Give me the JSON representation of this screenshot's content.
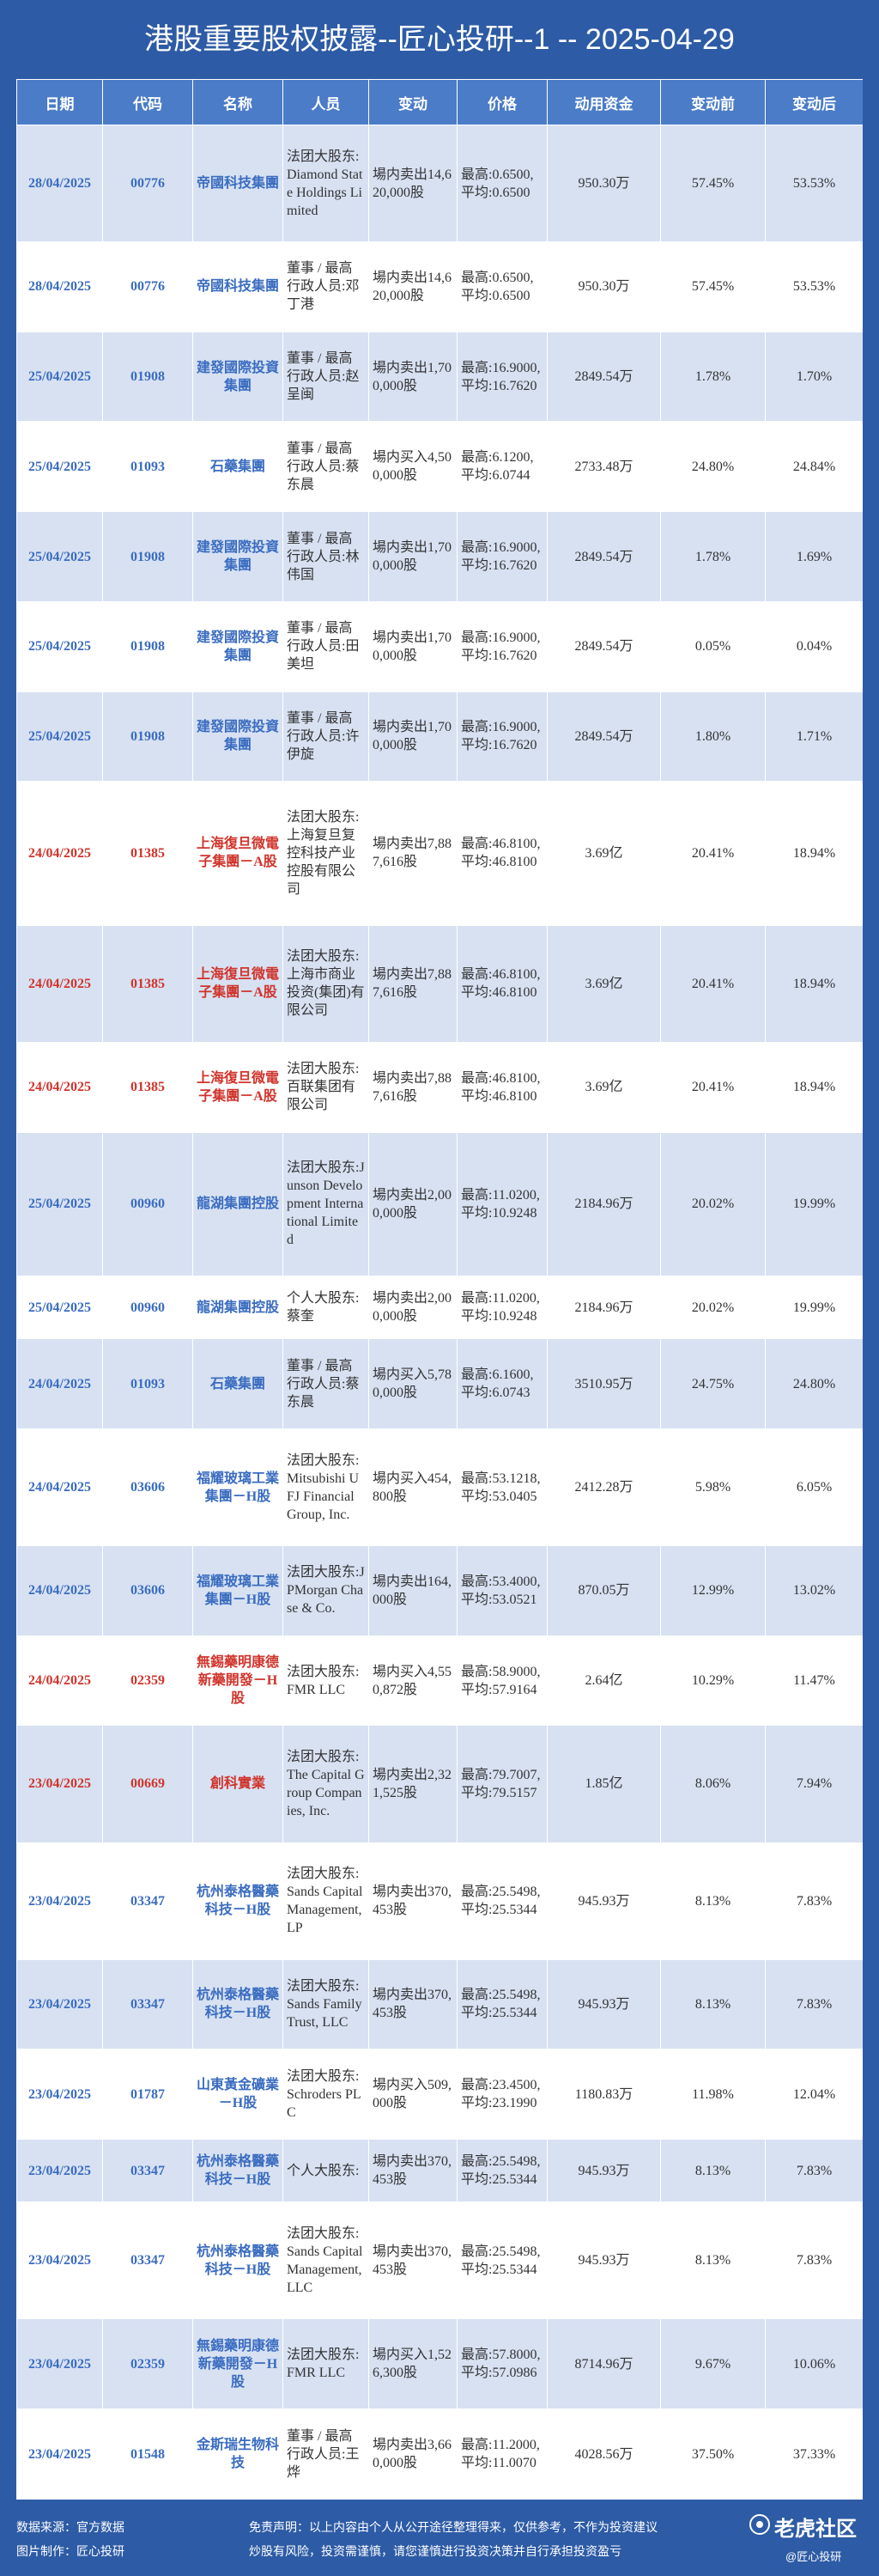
{
  "header": {
    "title": "港股重要股权披露--匠心投研--1 -- 2025-04-29"
  },
  "table": {
    "headers": [
      "日期",
      "代码",
      "名称",
      "人员",
      "变动",
      "价格",
      "动用资金",
      "变动前",
      "变动后"
    ],
    "rows": [
      {
        "color": "#3a6cc0",
        "cells": [
          "28/04/2025",
          "00776",
          "帝國科技集團",
          "法团大股东:Diamond State Holdings Limited",
          "場内卖出14,620,000股",
          "最高:0.6500,平均:0.6500",
          "950.30万",
          "57.45%",
          "53.53%"
        ]
      },
      {
        "color": "#3a6cc0",
        "cells": [
          "28/04/2025",
          "00776",
          "帝國科技集團",
          "董事 / 最高行政人员:邓丁港",
          "場内卖出14,620,000股",
          "最高:0.6500,平均:0.6500",
          "950.30万",
          "57.45%",
          "53.53%"
        ]
      },
      {
        "color": "#3a6cc0",
        "cells": [
          "25/04/2025",
          "01908",
          "建發國際投資集團",
          "董事 / 最高行政人员:赵呈闽",
          "場内卖出1,700,000股",
          "最高:16.9000,平均:16.7620",
          "2849.54万",
          "1.78%",
          "1.70%"
        ]
      },
      {
        "color": "#3a6cc0",
        "cells": [
          "25/04/2025",
          "01093",
          "石藥集團",
          "董事 / 最高行政人员:蔡东晨",
          "場内买入4,500,000股",
          "最高:6.1200,平均:6.0744",
          "2733.48万",
          "24.80%",
          "24.84%"
        ]
      },
      {
        "color": "#3a6cc0",
        "cells": [
          "25/04/2025",
          "01908",
          "建發國際投資集團",
          "董事 / 最高行政人员:林伟国",
          "場内卖出1,700,000股",
          "最高:16.9000,平均:16.7620",
          "2849.54万",
          "1.78%",
          "1.69%"
        ]
      },
      {
        "color": "#3a6cc0",
        "cells": [
          "25/04/2025",
          "01908",
          "建發國際投資集團",
          "董事 / 最高行政人员:田美坦",
          "場内卖出1,700,000股",
          "最高:16.9000,平均:16.7620",
          "2849.54万",
          "0.05%",
          "0.04%"
        ]
      },
      {
        "color": "#3a6cc0",
        "cells": [
          "25/04/2025",
          "01908",
          "建發國際投資集團",
          "董事 / 最高行政人员:许伊旋",
          "場内卖出1,700,000股",
          "最高:16.9000,平均:16.7620",
          "2849.54万",
          "1.80%",
          "1.71%"
        ]
      },
      {
        "color": "#d0342c",
        "cells": [
          "24/04/2025",
          "01385",
          "上海復旦微電子集團－A股",
          "法团大股东:上海复旦复控科技产业控股有限公司",
          "場内卖出7,887,616股",
          "最高:46.8100,平均:46.8100",
          "3.69亿",
          "20.41%",
          "18.94%"
        ]
      },
      {
        "color": "#d0342c",
        "cells": [
          "24/04/2025",
          "01385",
          "上海復旦微電子集團－A股",
          "法团大股东:上海市商业投资(集团)有限公司",
          "場内卖出7,887,616股",
          "最高:46.8100,平均:46.8100",
          "3.69亿",
          "20.41%",
          "18.94%"
        ]
      },
      {
        "color": "#d0342c",
        "cells": [
          "24/04/2025",
          "01385",
          "上海復旦微電子集團－A股",
          "法团大股东:百联集团有限公司",
          "場内卖出7,887,616股",
          "最高:46.8100,平均:46.8100",
          "3.69亿",
          "20.41%",
          "18.94%"
        ]
      },
      {
        "color": "#3a6cc0",
        "cells": [
          "25/04/2025",
          "00960",
          "龍湖集團控股",
          "法团大股东:Junson Development International Limited",
          "場内卖出2,000,000股",
          "最高:11.0200,平均:10.9248",
          "2184.96万",
          "20.02%",
          "19.99%"
        ]
      },
      {
        "color": "#3a6cc0",
        "cells": [
          "25/04/2025",
          "00960",
          "龍湖集團控股",
          "个人大股东:蔡奎",
          "場内卖出2,000,000股",
          "最高:11.0200,平均:10.9248",
          "2184.96万",
          "20.02%",
          "19.99%"
        ]
      },
      {
        "color": "#3a6cc0",
        "cells": [
          "24/04/2025",
          "01093",
          "石藥集團",
          "董事 / 最高行政人员:蔡东晨",
          "場内买入5,780,000股",
          "最高:6.1600,平均:6.0743",
          "3510.95万",
          "24.75%",
          "24.80%"
        ]
      },
      {
        "color": "#3a6cc0",
        "cells": [
          "24/04/2025",
          "03606",
          "福耀玻璃工業集團－H股",
          "法团大股东:Mitsubishi UFJ Financial Group, Inc.",
          "場内买入454,800股",
          "最高:53.1218,平均:53.0405",
          "2412.28万",
          "5.98%",
          "6.05%"
        ]
      },
      {
        "color": "#3a6cc0",
        "cells": [
          "24/04/2025",
          "03606",
          "福耀玻璃工業集團－H股",
          "法团大股东:JPMorgan Chase & Co.",
          "場内卖出164,000股",
          "最高:53.4000,平均:53.0521",
          "870.05万",
          "12.99%",
          "13.02%"
        ]
      },
      {
        "color": "#d0342c",
        "cells": [
          "24/04/2025",
          "02359",
          "無錫藥明康德新藥開發－H股",
          "法团大股东:FMR LLC",
          "場内买入4,550,872股",
          "最高:58.9000,平均:57.9164",
          "2.64亿",
          "10.29%",
          "11.47%"
        ]
      },
      {
        "color": "#d0342c",
        "cells": [
          "23/04/2025",
          "00669",
          "創科實業",
          "法团大股东:The Capital Group Companies, Inc.",
          "場内卖出2,321,525股",
          "最高:79.7007,平均:79.5157",
          "1.85亿",
          "8.06%",
          "7.94%"
        ]
      },
      {
        "color": "#3a6cc0",
        "cells": [
          "23/04/2025",
          "03347",
          "杭州泰格醫藥科技－H股",
          "法团大股东:Sands Capital Management, LP",
          "場内卖出370,453股",
          "最高:25.5498,平均:25.5344",
          "945.93万",
          "8.13%",
          "7.83%"
        ]
      },
      {
        "color": "#3a6cc0",
        "cells": [
          "23/04/2025",
          "03347",
          "杭州泰格醫藥科技－H股",
          "法团大股东:Sands Family Trust, LLC",
          "場内卖出370,453股",
          "最高:25.5498,平均:25.5344",
          "945.93万",
          "8.13%",
          "7.83%"
        ]
      },
      {
        "color": "#3a6cc0",
        "cells": [
          "23/04/2025",
          "01787",
          "山東黃金礦業－H股",
          "法团大股东:Schroders PLC",
          "場内买入509,000股",
          "最高:23.4500,平均:23.1990",
          "1180.83万",
          "11.98%",
          "12.04%"
        ]
      },
      {
        "color": "#3a6cc0",
        "cells": [
          "23/04/2025",
          "03347",
          "杭州泰格醫藥科技－H股",
          "个人大股东:",
          "場内卖出370,453股",
          "最高:25.5498,平均:25.5344",
          "945.93万",
          "8.13%",
          "7.83%"
        ]
      },
      {
        "color": "#3a6cc0",
        "cells": [
          "23/04/2025",
          "03347",
          "杭州泰格醫藥科技－H股",
          "法团大股东:Sands Capital Management, LLC",
          "場内卖出370,453股",
          "最高:25.5498,平均:25.5344",
          "945.93万",
          "8.13%",
          "7.83%"
        ]
      },
      {
        "color": "#3a6cc0",
        "cells": [
          "23/04/2025",
          "02359",
          "無錫藥明康德新藥開發－H股",
          "法团大股东:FMR LLC",
          "場内买入1,526,300股",
          "最高:57.8000,平均:57.0986",
          "8714.96万",
          "9.67%",
          "10.06%"
        ]
      },
      {
        "color": "#3a6cc0",
        "cells": [
          "23/04/2025",
          "01548",
          "金斯瑞生物科技",
          "董事 / 最高行政人员:王烨",
          "場内卖出3,660,000股",
          "最高:11.2000,平均:11.0070",
          "4028.56万",
          "37.50%",
          "37.33%"
        ]
      }
    ]
  },
  "footer": {
    "source": "数据来源：官方数据",
    "maker": "图片制作：匠心投研",
    "disclaimer": "免责声明：以上内容由个人从公开途径整理得来，仅供参考，不作为投资建议",
    "risk": "炒股有风险，投资需谨慎，请您谨慎进行投资决策并自行承担投资盈亏",
    "logo": "老虎社区",
    "handle": "@匠心投研"
  }
}
